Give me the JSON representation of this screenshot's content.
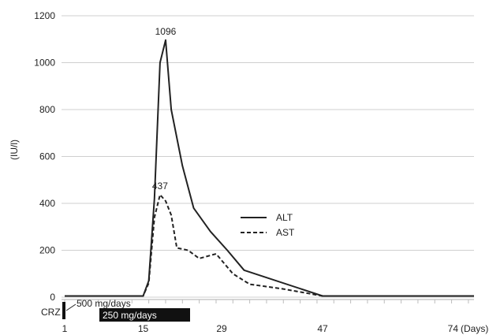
{
  "chart_data": {
    "type": "line",
    "title": "",
    "xlabel": "",
    "ylabel": "(IU/l)",
    "x_unit_label": "(Days)",
    "ylim": [
      0,
      1200
    ],
    "xlim": [
      1,
      74
    ],
    "y_ticks": [
      0,
      200,
      400,
      600,
      800,
      1000,
      1200
    ],
    "x_ticks": [
      1,
      15,
      29,
      47,
      74
    ],
    "grid": true,
    "legend_position": "center-right",
    "series": [
      {
        "name": "ALT",
        "style": "solid",
        "color": "#222222",
        "points": [
          [
            1,
            5
          ],
          [
            15,
            5
          ],
          [
            16,
            70
          ],
          [
            17,
            420
          ],
          [
            18,
            1000
          ],
          [
            19,
            1096
          ],
          [
            20,
            800
          ],
          [
            22,
            560
          ],
          [
            24,
            380
          ],
          [
            27,
            280
          ],
          [
            30,
            200
          ],
          [
            33,
            115
          ],
          [
            47,
            5
          ],
          [
            74,
            5
          ]
        ]
      },
      {
        "name": "AST",
        "style": "dashed",
        "color": "#222222",
        "points": [
          [
            1,
            5
          ],
          [
            15,
            5
          ],
          [
            16,
            60
          ],
          [
            17,
            340
          ],
          [
            18,
            437
          ],
          [
            19,
            410
          ],
          [
            20,
            350
          ],
          [
            21,
            210
          ],
          [
            23,
            200
          ],
          [
            25,
            165
          ],
          [
            28,
            185
          ],
          [
            31,
            100
          ],
          [
            34,
            55
          ],
          [
            40,
            35
          ],
          [
            47,
            5
          ],
          [
            74,
            5
          ]
        ]
      }
    ],
    "annotations": [
      {
        "text": "1096",
        "x": 19,
        "y": 1096
      },
      {
        "text": "437",
        "x": 18,
        "y": 437
      }
    ],
    "dosing": {
      "label": "CRZ",
      "bars": [
        {
          "label": "500 mg/days",
          "start": 1,
          "end": 1
        },
        {
          "label": "250 mg/days",
          "start": 7,
          "end": 17
        }
      ]
    }
  }
}
